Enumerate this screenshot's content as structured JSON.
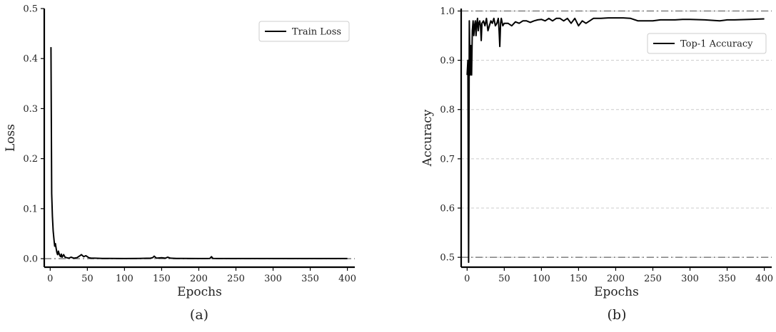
{
  "chart_data": [
    {
      "type": "line",
      "caption": "(a)",
      "xlabel": "Epochs",
      "ylabel": "Loss",
      "xlim": [
        -8,
        410
      ],
      "ylim": [
        -0.017,
        0.5
      ],
      "xticks": [
        0,
        50,
        100,
        150,
        200,
        250,
        300,
        350,
        400
      ],
      "yticks": [
        0.0,
        0.1,
        0.2,
        0.3,
        0.4,
        0.5
      ],
      "ytick_labels": [
        "0.0",
        "0.1",
        "0.2",
        "0.3",
        "0.4",
        "0.5"
      ],
      "legend": "top-right",
      "reference_lines": [
        {
          "y": 0.0,
          "style": "dashdot"
        }
      ],
      "series": [
        {
          "name": "Train Loss",
          "color": "#000000",
          "x": [
            1,
            2,
            3,
            4,
            5,
            6,
            7,
            8,
            9,
            10,
            11,
            12,
            13,
            14,
            15,
            16,
            18,
            20,
            22,
            25,
            28,
            32,
            36,
            40,
            42,
            45,
            48,
            52,
            55,
            60,
            70,
            80,
            100,
            120,
            135,
            138,
            140,
            143,
            150,
            155,
            158,
            162,
            170,
            200,
            215,
            217,
            219,
            240,
            300,
            350,
            400
          ],
          "y": [
            0.423,
            0.13,
            0.085,
            0.055,
            0.04,
            0.025,
            0.03,
            0.02,
            0.012,
            0.008,
            0.015,
            0.01,
            0.006,
            0.004,
            0.009,
            0.003,
            0.008,
            0.003,
            0.002,
            0.001,
            0.003,
            0.001,
            0.002,
            0.006,
            0.008,
            0.004,
            0.006,
            0.002,
            0.001,
            0.001,
            0.0005,
            0.0005,
            0.0003,
            0.0004,
            0.001,
            0.002,
            0.005,
            0.001,
            0.002,
            0.001,
            0.003,
            0.001,
            0.0005,
            0.0003,
            0.0005,
            0.004,
            0.0005,
            0.0003,
            0.0002,
            0.0002,
            0.0002
          ]
        }
      ]
    },
    {
      "type": "line",
      "caption": "(b)",
      "xlabel": "Epochs",
      "ylabel": "Accuracy",
      "xlim": [
        -8,
        410
      ],
      "ylim": [
        0.48,
        1.005
      ],
      "xticks": [
        0,
        50,
        100,
        150,
        200,
        250,
        300,
        350,
        400
      ],
      "yticks": [
        0.5,
        0.6,
        0.7,
        0.8,
        0.9,
        1.0
      ],
      "ytick_labels": [
        "0.5",
        "0.6",
        "0.7",
        "0.8",
        "0.9",
        "1.0"
      ],
      "legend": "top-right",
      "grid": true,
      "reference_lines": [
        {
          "y": 1.0,
          "style": "dashdot"
        },
        {
          "y": 0.5,
          "style": "dashdot"
        }
      ],
      "series": [
        {
          "name": "Top-1 Accuracy",
          "color": "#000000",
          "x": [
            0,
            1,
            2,
            3,
            4,
            5,
            6,
            7,
            8,
            9,
            10,
            11,
            12,
            13,
            14,
            15,
            16,
            17,
            18,
            19,
            20,
            22,
            24,
            26,
            28,
            30,
            32,
            34,
            36,
            38,
            40,
            42,
            43,
            44,
            45,
            46,
            48,
            50,
            55,
            60,
            65,
            70,
            75,
            80,
            85,
            90,
            95,
            100,
            105,
            110,
            115,
            120,
            125,
            130,
            135,
            140,
            145,
            150,
            155,
            160,
            165,
            170,
            180,
            190,
            200,
            210,
            220,
            230,
            240,
            250,
            260,
            270,
            280,
            290,
            300,
            320,
            340,
            350,
            360,
            380,
            400
          ],
          "y": [
            0.87,
            0.9,
            0.49,
            0.98,
            0.87,
            0.93,
            0.87,
            0.96,
            0.98,
            0.95,
            0.97,
            0.98,
            0.95,
            0.975,
            0.985,
            0.96,
            0.975,
            0.98,
            0.97,
            0.94,
            0.975,
            0.98,
            0.97,
            0.985,
            0.96,
            0.97,
            0.98,
            0.975,
            0.985,
            0.97,
            0.975,
            0.985,
            0.96,
            0.928,
            0.975,
            0.985,
            0.97,
            0.975,
            0.975,
            0.97,
            0.978,
            0.975,
            0.98,
            0.98,
            0.977,
            0.98,
            0.982,
            0.983,
            0.98,
            0.985,
            0.98,
            0.985,
            0.985,
            0.98,
            0.985,
            0.975,
            0.985,
            0.97,
            0.98,
            0.975,
            0.98,
            0.985,
            0.985,
            0.986,
            0.986,
            0.986,
            0.985,
            0.98,
            0.98,
            0.98,
            0.982,
            0.982,
            0.982,
            0.983,
            0.983,
            0.982,
            0.98,
            0.982,
            0.982,
            0.983,
            0.984
          ]
        }
      ]
    }
  ]
}
